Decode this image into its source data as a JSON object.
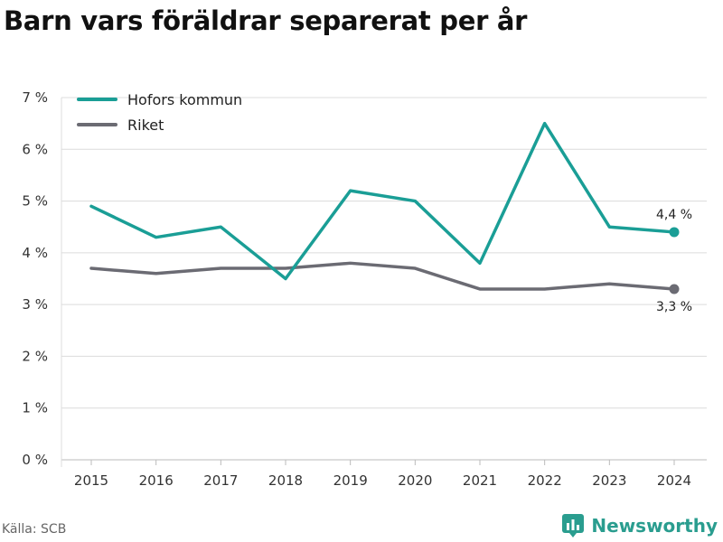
{
  "title": "Barn vars föräldrar separerat per år",
  "source": "Källa: SCB",
  "brand": "Newsworthy",
  "colors": {
    "hofors": "#1a9e96",
    "riket": "#6b6b73",
    "grid": "#dcdcdc",
    "brand": "#2a9d8f"
  },
  "chart_data": {
    "type": "line",
    "x": [
      "2015",
      "2016",
      "2017",
      "2018",
      "2019",
      "2020",
      "2021",
      "2022",
      "2023",
      "2024"
    ],
    "ylim": [
      0,
      7
    ],
    "yticks": [
      {
        "value": 0,
        "label": "0 %"
      },
      {
        "value": 1,
        "label": "1 %"
      },
      {
        "value": 2,
        "label": "2 %"
      },
      {
        "value": 3,
        "label": "3 %"
      },
      {
        "value": 4,
        "label": "4 %"
      },
      {
        "value": 5,
        "label": "5 %"
      },
      {
        "value": 6,
        "label": "6 %"
      },
      {
        "value": 7,
        "label": "7 %"
      }
    ],
    "grid": true,
    "legend": "top-left",
    "series": [
      {
        "name": "Hofors kommun",
        "color": "#1a9e96",
        "values": [
          4.9,
          4.3,
          4.5,
          3.5,
          5.2,
          5.0,
          3.8,
          6.5,
          4.5,
          4.4
        ],
        "end_label": "4,4 %"
      },
      {
        "name": "Riket",
        "color": "#6b6b73",
        "values": [
          3.7,
          3.6,
          3.7,
          3.7,
          3.8,
          3.7,
          3.3,
          3.3,
          3.4,
          3.3
        ],
        "end_label": "3,3 %"
      }
    ]
  }
}
